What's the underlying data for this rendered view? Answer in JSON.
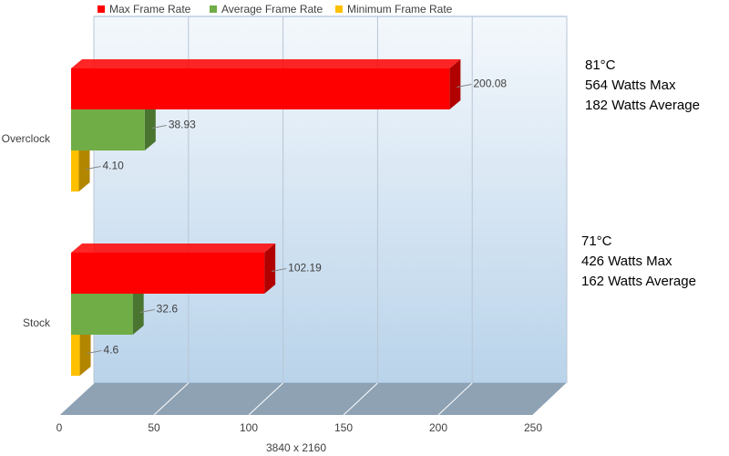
{
  "chart_data": {
    "type": "bar3d-horizontal",
    "xlabel": "3840 x 2160",
    "categories": [
      "Overclock",
      "Stock"
    ],
    "series": [
      {
        "name": "Max Frame Rate",
        "color": "#ff0000",
        "side": "#b00000",
        "values": [
          200.08,
          102.19
        ]
      },
      {
        "name": "Average Frame Rate",
        "color": "#70ad47",
        "side": "#4a7530",
        "values": [
          38.93,
          32.6
        ]
      },
      {
        "name": "Minimum Frame Rate",
        "color": "#ffc000",
        "side": "#b38600",
        "values": [
          4.1,
          4.6
        ],
        "value_labels": [
          "4.10",
          "4.6"
        ]
      }
    ],
    "xlim": [
      0,
      250
    ],
    "xticks": [
      0,
      50,
      100,
      150,
      200,
      250
    ],
    "grid": true,
    "annotations": [
      [
        "81°C",
        "564 Watts Max",
        "182 Watts Average"
      ],
      [
        "71°C",
        "426 Watts Max",
        "162 Watts Average"
      ]
    ]
  }
}
